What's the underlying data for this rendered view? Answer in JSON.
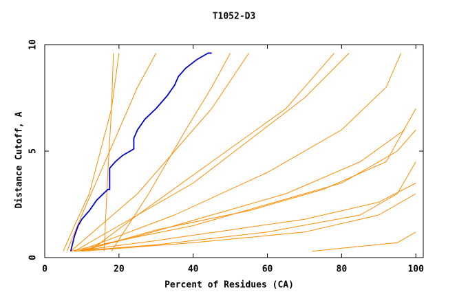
{
  "chart_data": {
    "type": "line",
    "title": "T1052-D3",
    "x_label": "Percent of Residues (CA)",
    "y_label": "Distance Cutoff, A",
    "xlim": [
      0,
      102
    ],
    "ylim": [
      0,
      10
    ],
    "xticks": [
      0,
      20,
      40,
      60,
      80,
      100
    ],
    "yticks": [
      0,
      5,
      10
    ],
    "series": [
      {
        "color": "#ff8c00",
        "x": [
          5,
          8,
          12,
          15,
          18,
          20
        ],
        "values": [
          0.3,
          1.5,
          3,
          5,
          7,
          9.6
        ]
      },
      {
        "color": "#ff8c00",
        "x": [
          6,
          10,
          15,
          20,
          25,
          30
        ],
        "values": [
          0.3,
          2,
          4,
          6,
          8,
          9.6
        ]
      },
      {
        "color": "#ff8c00",
        "x": [
          7,
          15,
          25,
          35,
          45,
          55
        ],
        "values": [
          0.3,
          1.5,
          3,
          5,
          7,
          9.6
        ]
      },
      {
        "color": "#ff8c00",
        "x": [
          7,
          20,
          40,
          60,
          80,
          95,
          100
        ],
        "values": [
          0.3,
          0.8,
          1.5,
          2.5,
          3.5,
          5,
          6
        ]
      },
      {
        "color": "#ff8c00",
        "x": [
          8,
          30,
          50,
          70,
          90,
          100
        ],
        "values": [
          0.3,
          0.8,
          1.3,
          1.8,
          2.6,
          3.5
        ]
      },
      {
        "color": "#ff8c00",
        "x": [
          8,
          30,
          60,
          85,
          95,
          100
        ],
        "values": [
          0.3,
          0.6,
          1.2,
          2,
          3,
          4.5
        ]
      },
      {
        "color": "#ff8c00",
        "x": [
          9,
          25,
          45,
          65,
          85,
          97
        ],
        "values": [
          0.3,
          1,
          2,
          3,
          4.5,
          6
        ]
      },
      {
        "color": "#ff8c00",
        "x": [
          10,
          40,
          70,
          90,
          100
        ],
        "values": [
          0.3,
          0.7,
          1.2,
          2,
          3
        ]
      },
      {
        "color": "#ff8c00",
        "x": [
          72,
          95,
          100
        ],
        "values": [
          0.3,
          0.7,
          1.2
        ]
      },
      {
        "color": "#ff8c00",
        "x": [
          18,
          28,
          38,
          45,
          50
        ],
        "values": [
          0.3,
          3,
          6,
          8,
          9.6
        ]
      },
      {
        "color": "#ff8c00",
        "x": [
          12,
          25,
          45,
          65,
          78
        ],
        "values": [
          0.3,
          2,
          4.5,
          7,
          9.6
        ]
      },
      {
        "color": "#ff8c00",
        "x": [
          9,
          35,
          60,
          80,
          92,
          96
        ],
        "values": [
          0.3,
          2,
          4,
          6,
          8,
          9.6
        ]
      },
      {
        "color": "#ff8c00",
        "x": [
          8,
          20,
          40,
          55,
          70,
          82
        ],
        "values": [
          0.3,
          1.5,
          3.5,
          5.5,
          7.5,
          9.6
        ]
      },
      {
        "color": "#ff8c00",
        "x": [
          16,
          17,
          18,
          18.5
        ],
        "values": [
          0.3,
          4,
          7,
          9.6
        ]
      },
      {
        "color": "#ff8c00",
        "x": [
          10,
          30,
          55,
          75,
          92,
          100
        ],
        "values": [
          0.3,
          1.3,
          2.2,
          3.2,
          4.5,
          7
        ]
      },
      {
        "color": "#0000cc",
        "x": [
          7,
          8,
          9,
          10,
          12,
          14,
          17,
          17.5,
          17.5,
          19,
          21,
          24,
          24,
          25,
          27,
          30,
          33,
          35,
          36,
          38,
          41,
          44,
          45
        ],
        "values": [
          0.3,
          1.0,
          1.5,
          1.8,
          2.2,
          2.7,
          3.2,
          3.2,
          4.2,
          4.5,
          4.8,
          5.1,
          5.6,
          6.0,
          6.5,
          7.0,
          7.6,
          8.1,
          8.5,
          8.9,
          9.3,
          9.6,
          9.6
        ]
      }
    ]
  }
}
